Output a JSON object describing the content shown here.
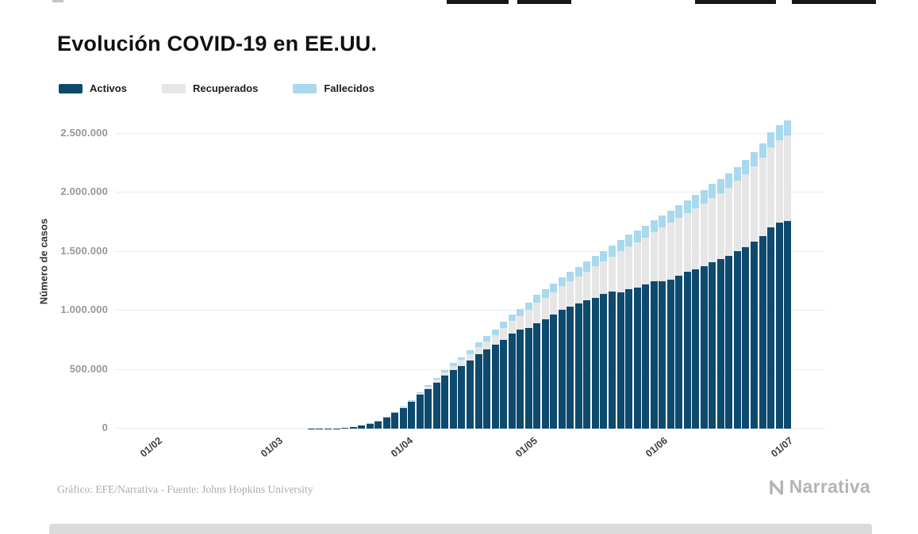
{
  "title": "Evolución COVID-19 en EE.UU.",
  "legend": [
    {
      "label": "Activos",
      "color": "#0d4a6e"
    },
    {
      "label": "Recuperados",
      "color": "#e6e6e6"
    },
    {
      "label": "Fallecidos",
      "color": "#a8d9ee"
    }
  ],
  "y_axis": {
    "title": "Número de casos",
    "ticks": [
      {
        "value": 0,
        "label": "0"
      },
      {
        "value": 500000,
        "label": "500.000"
      },
      {
        "value": 1000000,
        "label": "1.000.000"
      },
      {
        "value": 1500000,
        "label": "1.500.000"
      },
      {
        "value": 2000000,
        "label": "2.000.000"
      },
      {
        "value": 2500000,
        "label": "2.500.000"
      }
    ]
  },
  "x_axis": {
    "ticks": [
      "01/02",
      "01/03",
      "01/04",
      "01/05",
      "01/06",
      "01/07"
    ]
  },
  "footer": {
    "credit": "Gráfico: EFE/Narrativa - Fuente: Johns Hopkins University",
    "logo_text": "Narrativa"
  },
  "chart_data": {
    "type": "bar",
    "stacked": true,
    "title": "Evolución COVID-19 en EE.UU.",
    "xlabel": "",
    "ylabel": "Número de casos",
    "ylim": [
      0,
      2500000
    ],
    "grid": true,
    "legend_position": "top-left",
    "x_tick_labels": [
      "01/02",
      "01/03",
      "01/04",
      "01/05",
      "01/06",
      "01/07"
    ],
    "x": [
      "22/01",
      "26/01",
      "30/01",
      "01/02",
      "05/02",
      "09/02",
      "13/02",
      "17/02",
      "21/02",
      "25/02",
      "29/02",
      "01/03",
      "03/03",
      "05/03",
      "07/03",
      "09/03",
      "11/03",
      "13/03",
      "15/03",
      "17/03",
      "19/03",
      "21/03",
      "23/03",
      "25/03",
      "27/03",
      "29/03",
      "31/03",
      "02/04",
      "04/04",
      "06/04",
      "08/04",
      "10/04",
      "12/04",
      "14/04",
      "16/04",
      "18/04",
      "20/04",
      "22/04",
      "24/04",
      "26/04",
      "28/04",
      "30/04",
      "02/05",
      "04/05",
      "06/05",
      "08/05",
      "10/05",
      "12/05",
      "14/05",
      "16/05",
      "18/05",
      "20/05",
      "22/05",
      "24/05",
      "26/05",
      "28/05",
      "30/05",
      "01/06",
      "03/06",
      "05/06",
      "07/06",
      "09/06",
      "11/06",
      "13/06",
      "15/06",
      "17/06",
      "19/06",
      "21/06",
      "23/06",
      "25/06",
      "27/06",
      "29/06",
      "01/07"
    ],
    "series": [
      {
        "name": "Activos",
        "color": "#0d4a6e",
        "values": [
          1,
          5,
          6,
          8,
          11,
          11,
          13,
          13,
          15,
          15,
          24,
          67,
          107,
          201,
          392,
          671,
          1237,
          2120,
          3424,
          6296,
          13369,
          25011,
          43112,
          64475,
          99207,
          135754,
          177275,
          228526,
          285791,
          336250,
          390798,
          449159,
          500305,
          534075,
          579972,
          628693,
          669903,
          715726,
          754330,
          803916,
          838291,
          852481,
          891302,
          924520,
          965381,
          1007756,
          1034102,
          1058993,
          1085462,
          1110754,
          1145696,
          1164102,
          1154823,
          1184538,
          1196821,
          1220142,
          1250142,
          1247899,
          1265087,
          1296989,
          1327460,
          1349322,
          1376023,
          1411704,
          1436083,
          1462070,
          1502734,
          1542184,
          1585676,
          1635932,
          1705976,
          1745000,
          1763000
        ]
      },
      {
        "name": "Recuperados",
        "color": "#e6e6e6",
        "values": [
          0,
          0,
          0,
          0,
          0,
          1,
          3,
          3,
          5,
          6,
          7,
          7,
          7,
          8,
          8,
          8,
          8,
          12,
          12,
          17,
          108,
          171,
          178,
          361,
          869,
          2665,
          7024,
          9001,
          14652,
          19581,
          23559,
          28790,
          32988,
          47763,
          54703,
          64840,
          72329,
          77366,
          99079,
          106988,
          115936,
          153947,
          175382,
          187180,
          189791,
          198993,
          216169,
          230287,
          246414,
          268376,
          272265,
          294312,
          350135,
          361239,
          384902,
          399991,
          416461,
          458231,
          479258,
          491706,
          500849,
          518522,
          533504,
          547386,
          561816,
          583503,
          599115,
          617460,
          640198,
          663562,
          679308,
          700000,
          722000
        ]
      },
      {
        "name": "Fallecidos",
        "color": "#a8d9ee",
        "values": [
          0,
          0,
          0,
          0,
          0,
          0,
          0,
          0,
          0,
          0,
          1,
          1,
          4,
          12,
          17,
          25,
          36,
          47,
          63,
          108,
          200,
          307,
          557,
          942,
          1581,
          2467,
          3873,
          5926,
          8407,
          10783,
          14695,
          18586,
          22020,
          25832,
          32917,
          38664,
          42094,
          46583,
          51949,
          54881,
          58355,
          62996,
          66385,
          68934,
          73431,
          77180,
          79528,
          80684,
          85898,
          88754,
          90347,
          93439,
          95979,
          97722,
          98902,
          101617,
          103781,
          105147,
          107175,
          109143,
          110514,
          112006,
          113820,
          115436,
          116127,
          117717,
          119112,
          119959,
          121228,
          122805,
          125039,
          126000,
          127000
        ]
      }
    ]
  }
}
